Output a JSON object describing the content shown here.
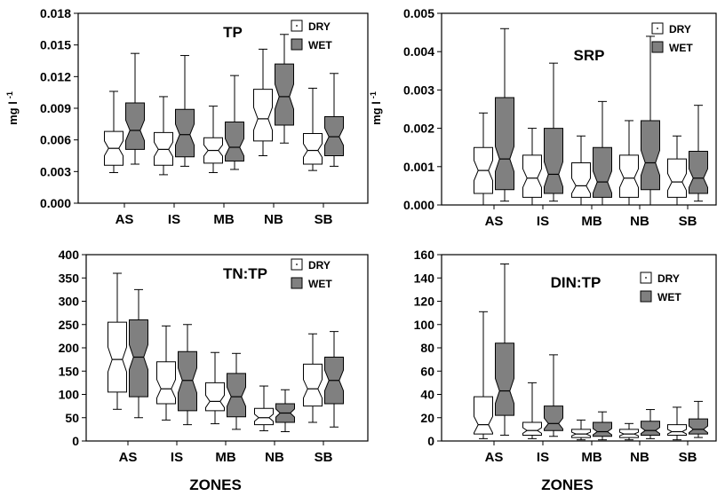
{
  "chart_data": [
    {
      "type": "box",
      "title": "TP",
      "ylabel": "mg l -1",
      "ylabel_main": "mg l",
      "ylabel_sup": "-1",
      "xlabel": "",
      "categories": [
        "AS",
        "IS",
        "MB",
        "NB",
        "SB"
      ],
      "ylim": [
        0,
        0.018
      ],
      "yticks": [
        0.0,
        0.003,
        0.006,
        0.009,
        0.012,
        0.015,
        0.018
      ],
      "ytick_labels": [
        "0.000",
        "0.003",
        "0.006",
        "0.009",
        "0.012",
        "0.015",
        "0.018"
      ],
      "legend_position": "top-right",
      "series": [
        {
          "name": "DRY",
          "color": "#ffffff",
          "stats": [
            [
              0.0029,
              0.0036,
              0.0052,
              0.0068,
              0.0106
            ],
            [
              0.0027,
              0.0036,
              0.0051,
              0.0067,
              0.0101
            ],
            [
              0.0029,
              0.0038,
              0.005,
              0.0062,
              0.0092
            ],
            [
              0.0045,
              0.0059,
              0.008,
              0.0108,
              0.0146
            ],
            [
              0.0031,
              0.0037,
              0.005,
              0.0066,
              0.0109
            ]
          ]
        },
        {
          "name": "WET",
          "color": "#808080",
          "stats": [
            [
              0.0037,
              0.0051,
              0.0069,
              0.0095,
              0.0142
            ],
            [
              0.0035,
              0.0044,
              0.0065,
              0.0089,
              0.014
            ],
            [
              0.0032,
              0.004,
              0.0053,
              0.0077,
              0.0121
            ],
            [
              0.0057,
              0.0074,
              0.0101,
              0.0132,
              0.016
            ],
            [
              0.0035,
              0.0045,
              0.0063,
              0.0082,
              0.0123
            ]
          ]
        }
      ]
    },
    {
      "type": "box",
      "title": "SRP",
      "ylabel": "mg l -1",
      "ylabel_main": "mg l",
      "ylabel_sup": "-1",
      "xlabel": "",
      "categories": [
        "AS",
        "IS",
        "MB",
        "NB",
        "SB"
      ],
      "ylim": [
        0,
        0.005
      ],
      "yticks": [
        0.0,
        0.001,
        0.002,
        0.003,
        0.004,
        0.005
      ],
      "ytick_labels": [
        "0.000",
        "0.001",
        "0.002",
        "0.003",
        "0.004",
        "0.005"
      ],
      "legend_position": "top-right",
      "series": [
        {
          "name": "DRY",
          "color": "#ffffff",
          "stats": [
            [
              0.0,
              0.0003,
              0.0009,
              0.0015,
              0.0024
            ],
            [
              0.0,
              0.0002,
              0.0007,
              0.0013,
              0.002
            ],
            [
              0.0,
              0.0002,
              0.0005,
              0.0011,
              0.0018
            ],
            [
              0.0,
              0.0002,
              0.0007,
              0.0013,
              0.0022
            ],
            [
              0.0,
              0.0002,
              0.0006,
              0.0012,
              0.0018
            ]
          ]
        },
        {
          "name": "WET",
          "color": "#808080",
          "stats": [
            [
              0.0001,
              0.0004,
              0.0012,
              0.0028,
              0.0046
            ],
            [
              0.0001,
              0.0003,
              0.0008,
              0.002,
              0.0037
            ],
            [
              0.0,
              0.0002,
              0.0006,
              0.0015,
              0.0027
            ],
            [
              0.0,
              0.0004,
              0.0011,
              0.0022,
              0.0044
            ],
            [
              0.0001,
              0.0003,
              0.0007,
              0.0014,
              0.0026
            ]
          ]
        }
      ]
    },
    {
      "type": "box",
      "title": "TN:TP",
      "ylabel": "",
      "xlabel": "ZONES",
      "categories": [
        "AS",
        "IS",
        "MB",
        "NB",
        "SB"
      ],
      "ylim": [
        0,
        400
      ],
      "yticks": [
        0,
        50,
        100,
        150,
        200,
        250,
        300,
        350,
        400
      ],
      "ytick_labels": [
        "0",
        "50",
        "100",
        "150",
        "200",
        "250",
        "300",
        "350",
        "400"
      ],
      "legend_position": "top-right",
      "series": [
        {
          "name": "DRY",
          "color": "#ffffff",
          "stats": [
            [
              68,
              105,
              175,
              255,
              360
            ],
            [
              45,
              80,
              112,
              170,
              247
            ],
            [
              37,
              65,
              85,
              125,
              190
            ],
            [
              22,
              35,
              50,
              70,
              118
            ],
            [
              40,
              75,
              112,
              165,
              230
            ]
          ]
        },
        {
          "name": "WET",
          "color": "#808080",
          "stats": [
            [
              50,
              95,
              180,
              260,
              325
            ],
            [
              35,
              65,
              130,
              192,
              250
            ],
            [
              25,
              52,
              95,
              145,
              188
            ],
            [
              20,
              40,
              60,
              80,
              110
            ],
            [
              30,
              80,
              130,
              180,
              235
            ]
          ]
        }
      ]
    },
    {
      "type": "box",
      "title": "DIN:TP",
      "ylabel": "",
      "xlabel": "ZONES",
      "categories": [
        "AS",
        "IS",
        "MB",
        "NB",
        "SB"
      ],
      "ylim": [
        0,
        160
      ],
      "yticks": [
        0,
        20,
        40,
        60,
        80,
        100,
        120,
        140,
        160
      ],
      "ytick_labels": [
        "0",
        "20",
        "40",
        "60",
        "80",
        "100",
        "120",
        "140",
        "160"
      ],
      "legend_position": "top-right",
      "series": [
        {
          "name": "DRY",
          "color": "#ffffff",
          "stats": [
            [
              2,
              6,
              14,
              38,
              111
            ],
            [
              2,
              5,
              9,
              16,
              50
            ],
            [
              1,
              3,
              6,
              10,
              18
            ],
            [
              1,
              3,
              6,
              10,
              15
            ],
            [
              1,
              5,
              8,
              14,
              29
            ]
          ]
        },
        {
          "name": "WET",
          "color": "#808080",
          "stats": [
            [
              5,
              22,
              43,
              84,
              152
            ],
            [
              4,
              9,
              15,
              30,
              74
            ],
            [
              1,
              4,
              8,
              16,
              25
            ],
            [
              2,
              5,
              9,
              17,
              27
            ],
            [
              3,
              6,
              10,
              19,
              34
            ]
          ]
        }
      ]
    }
  ]
}
